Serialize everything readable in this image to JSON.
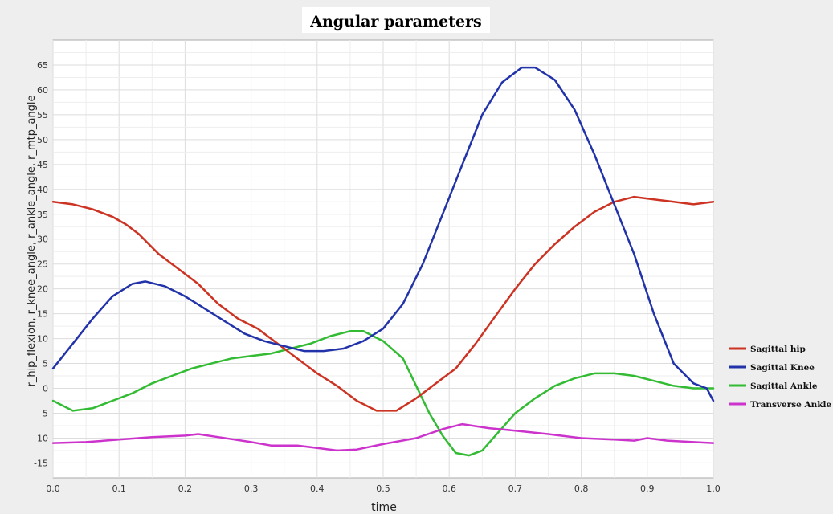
{
  "chart_data": {
    "type": "line",
    "title": "Angular parameters",
    "xlabel": "time",
    "ylabel": "r_hip_flexion, r_knee_angle, r_ankle_angle, r_mtp_angle",
    "xlim": [
      0.0,
      1.0
    ],
    "ylim": [
      -18,
      70
    ],
    "xticks": [
      "0.0",
      "0.1",
      "0.2",
      "0.3",
      "0.4",
      "0.5",
      "0.6",
      "0.7",
      "0.8",
      "0.9",
      "1.0"
    ],
    "yticks": [
      "-15",
      "-10",
      "-5",
      "0",
      "5",
      "10",
      "15",
      "20",
      "25",
      "30",
      "35",
      "40",
      "45",
      "50",
      "55",
      "60",
      "65"
    ],
    "grid": true,
    "legend_position": "right",
    "series": [
      {
        "name": "Sagittal hip",
        "color": "#cc3322",
        "x": [
          0.0,
          0.03,
          0.06,
          0.09,
          0.11,
          0.13,
          0.16,
          0.19,
          0.22,
          0.25,
          0.28,
          0.31,
          0.34,
          0.37,
          0.4,
          0.43,
          0.46,
          0.49,
          0.52,
          0.55,
          0.58,
          0.61,
          0.64,
          0.67,
          0.7,
          0.73,
          0.76,
          0.79,
          0.82,
          0.85,
          0.88,
          0.91,
          0.94,
          0.97,
          1.0
        ],
        "values": [
          37.5,
          37,
          36,
          34.5,
          33,
          31,
          27,
          24,
          21,
          17,
          14,
          12,
          9,
          6,
          3,
          0.5,
          -2.5,
          -4.5,
          -4.5,
          -2,
          1,
          4,
          9,
          14.5,
          20,
          25,
          29,
          32.5,
          35.5,
          37.5,
          38.5,
          38,
          37.5,
          37,
          37.5
        ]
      },
      {
        "name": "Sagittal Knee",
        "color": "#2233aa",
        "x": [
          0.0,
          0.03,
          0.06,
          0.09,
          0.12,
          0.14,
          0.17,
          0.2,
          0.23,
          0.26,
          0.29,
          0.32,
          0.35,
          0.38,
          0.41,
          0.44,
          0.47,
          0.5,
          0.53,
          0.56,
          0.59,
          0.62,
          0.65,
          0.68,
          0.71,
          0.73,
          0.76,
          0.79,
          0.82,
          0.85,
          0.88,
          0.91,
          0.94,
          0.97,
          0.99,
          1.0
        ],
        "values": [
          4,
          9,
          14,
          18.5,
          21,
          21.5,
          20.5,
          18.5,
          16,
          13.5,
          11,
          9.5,
          8.5,
          7.5,
          7.5,
          8,
          9.5,
          12,
          17,
          25,
          35,
          45,
          55,
          61.5,
          64.5,
          64.5,
          62,
          56,
          47,
          37,
          27,
          15,
          5,
          1,
          0,
          -2.5
        ]
      },
      {
        "name": "Sagittal Ankle",
        "color": "#33bb33",
        "x": [
          0.0,
          0.03,
          0.06,
          0.09,
          0.12,
          0.15,
          0.18,
          0.21,
          0.24,
          0.27,
          0.3,
          0.33,
          0.36,
          0.39,
          0.42,
          0.45,
          0.47,
          0.5,
          0.53,
          0.55,
          0.57,
          0.59,
          0.61,
          0.63,
          0.65,
          0.67,
          0.7,
          0.73,
          0.76,
          0.79,
          0.82,
          0.85,
          0.88,
          0.91,
          0.94,
          0.97,
          1.0
        ],
        "values": [
          -2.5,
          -4.5,
          -4,
          -2.5,
          -1,
          1,
          2.5,
          4,
          5,
          6,
          6.5,
          7,
          8,
          9,
          10.5,
          11.5,
          11.5,
          9.5,
          6,
          0.5,
          -5,
          -9.5,
          -13,
          -13.5,
          -12.5,
          -9.5,
          -5,
          -2,
          0.5,
          2,
          3,
          3,
          2.5,
          1.5,
          0.5,
          0,
          0
        ]
      },
      {
        "name": "Transverse Ankle",
        "color": "#cc33cc",
        "x": [
          0.0,
          0.05,
          0.1,
          0.15,
          0.2,
          0.22,
          0.25,
          0.3,
          0.33,
          0.37,
          0.4,
          0.43,
          0.46,
          0.5,
          0.55,
          0.59,
          0.62,
          0.66,
          0.7,
          0.75,
          0.8,
          0.85,
          0.88,
          0.9,
          0.93,
          0.97,
          1.0
        ],
        "values": [
          -11,
          -10.8,
          -10.3,
          -9.8,
          -9.5,
          -9.2,
          -9.8,
          -10.8,
          -11.5,
          -11.5,
          -12,
          -12.5,
          -12.3,
          -11.2,
          -10,
          -8.2,
          -7.2,
          -8,
          -8.5,
          -9.2,
          -10,
          -10.3,
          -10.5,
          -10,
          -10.5,
          -10.8,
          -11
        ]
      }
    ]
  }
}
